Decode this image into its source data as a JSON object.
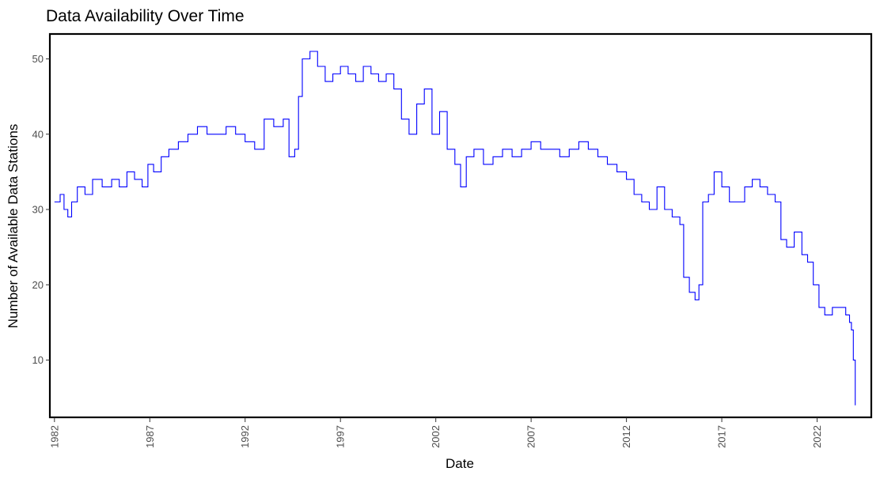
{
  "chart_data": {
    "type": "line",
    "title": "Data Availability Over Time",
    "xlabel": "Date",
    "ylabel": "Number of Available Data Stations",
    "x_ticks": [
      "1982",
      "1987",
      "1992",
      "1997",
      "2002",
      "2007",
      "2012",
      "2017",
      "2022"
    ],
    "y_ticks": [
      10,
      20,
      30,
      40,
      50
    ],
    "xlim": [
      1981.8,
      2024.8
    ],
    "ylim": [
      2.5,
      53.2
    ],
    "grid": false,
    "legend": "none",
    "line_color": "#0000ff",
    "series": [
      {
        "x": [
          1982.0,
          1982.3,
          1982.5,
          1982.7,
          1982.9,
          1983.2,
          1983.6,
          1984.0,
          1984.5,
          1985.0,
          1985.4,
          1985.8,
          1986.2,
          1986.6,
          1986.9,
          1987.2,
          1987.6,
          1988.0,
          1988.5,
          1989.0,
          1989.5,
          1990.0,
          1990.5,
          1991.0,
          1991.5,
          1992.0,
          1992.5,
          1993.0,
          1993.5,
          1994.0,
          1994.3,
          1994.6,
          1994.8,
          1995.0,
          1995.4,
          1995.8,
          1996.2,
          1996.6,
          1997.0,
          1997.4,
          1997.8,
          1998.2,
          1998.6,
          1999.0,
          1999.4,
          1999.8,
          2000.2,
          2000.6,
          2001.0,
          2001.4,
          2001.8,
          2002.2,
          2002.6,
          2003.0,
          2003.3,
          2003.6,
          2004.0,
          2004.5,
          2005.0,
          2005.5,
          2006.0,
          2006.5,
          2007.0,
          2007.5,
          2008.0,
          2008.5,
          2009.0,
          2009.5,
          2010.0,
          2010.5,
          2011.0,
          2011.5,
          2012.0,
          2012.4,
          2012.8,
          2013.2,
          2013.6,
          2014.0,
          2014.4,
          2014.8,
          2015.0,
          2015.3,
          2015.6,
          2015.8,
          2016.0,
          2016.3,
          2016.6,
          2017.0,
          2017.4,
          2017.8,
          2018.2,
          2018.6,
          2019.0,
          2019.4,
          2019.8,
          2020.1,
          2020.4,
          2020.8,
          2021.2,
          2021.5,
          2021.8,
          2022.1,
          2022.4,
          2022.8,
          2023.2,
          2023.5,
          2023.7,
          2023.8,
          2023.9,
          2024.0
        ],
        "y": [
          31,
          32,
          30,
          29,
          31,
          33,
          32,
          34,
          33,
          34,
          33,
          35,
          34,
          33,
          36,
          35,
          37,
          38,
          39,
          40,
          41,
          40,
          40,
          41,
          40,
          39,
          38,
          42,
          41,
          42,
          37,
          38,
          45,
          50,
          51,
          49,
          47,
          48,
          49,
          48,
          47,
          49,
          48,
          47,
          48,
          46,
          42,
          40,
          44,
          46,
          40,
          43,
          38,
          36,
          33,
          37,
          38,
          36,
          37,
          38,
          37,
          38,
          39,
          38,
          38,
          37,
          38,
          39,
          38,
          37,
          36,
          35,
          34,
          32,
          31,
          30,
          33,
          30,
          29,
          28,
          21,
          19,
          18,
          20,
          31,
          32,
          35,
          33,
          31,
          31,
          33,
          34,
          33,
          32,
          31,
          26,
          25,
          27,
          24,
          23,
          20,
          17,
          16,
          17,
          17,
          16,
          15,
          14,
          10,
          4
        ]
      }
    ]
  }
}
